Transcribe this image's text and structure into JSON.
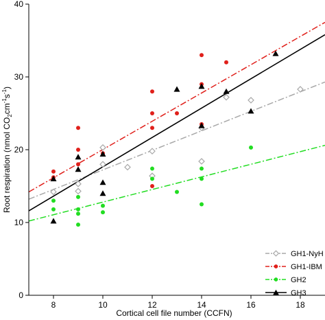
{
  "chart_data": {
    "type": "scatter",
    "title": "",
    "xlabel": "Cortical cell file number (CCFN)",
    "ylabel": {
      "pre": "Root respiration (nmol CO",
      "sub": "2",
      "mid": "cm",
      "sup1": "-1",
      "mid2": "s",
      "sup2": "-1",
      "post": ")"
    },
    "xlim": [
      7,
      19
    ],
    "ylim": [
      0,
      40
    ],
    "xticks": [
      8,
      10,
      12,
      14,
      16,
      18
    ],
    "yticks": [
      0,
      10,
      20,
      30,
      40
    ],
    "legend_position": "bottom-right",
    "grid": false,
    "series": [
      {
        "name": "GH1-NyH",
        "marker": "diamond-open",
        "color": "#a8a8a8",
        "line_style": "dash-dot",
        "points": [
          [
            8,
            14.2
          ],
          [
            9,
            14.3
          ],
          [
            9,
            15.3
          ],
          [
            10,
            20.3
          ],
          [
            10,
            18.0
          ],
          [
            11,
            17.6
          ],
          [
            12,
            16.4
          ],
          [
            12,
            19.8
          ],
          [
            14,
            18.4
          ],
          [
            14,
            23.0
          ],
          [
            15,
            27.2
          ],
          [
            16,
            26.8
          ],
          [
            18,
            28.3
          ]
        ],
        "fit": [
          [
            7,
            13.2
          ],
          [
            19,
            29.3
          ]
        ]
      },
      {
        "name": "GH1-IBM",
        "marker": "circle",
        "color": "#e0201b",
        "line_style": "dash-dot",
        "points": [
          [
            8,
            17.0
          ],
          [
            8,
            16.2
          ],
          [
            9,
            23.0
          ],
          [
            9,
            20.0
          ],
          [
            9,
            18.0
          ],
          [
            10,
            19.5
          ],
          [
            12,
            28.0
          ],
          [
            12,
            25.0
          ],
          [
            12,
            23.0
          ],
          [
            12,
            15.0
          ],
          [
            13,
            25.0
          ],
          [
            14,
            33.0
          ],
          [
            14,
            29.0
          ],
          [
            14,
            23.5
          ],
          [
            15,
            32.0
          ]
        ],
        "fit": [
          [
            7,
            14.2
          ],
          [
            19,
            37.5
          ]
        ]
      },
      {
        "name": "GH2",
        "marker": "circle",
        "color": "#22dd22",
        "line_style": "dash-dot",
        "points": [
          [
            8,
            13.0
          ],
          [
            8,
            11.8
          ],
          [
            9,
            13.5
          ],
          [
            9,
            11.8
          ],
          [
            9,
            11.2
          ],
          [
            9,
            9.7
          ],
          [
            10,
            12.3
          ],
          [
            10,
            11.4
          ],
          [
            12,
            17.4
          ],
          [
            12,
            16.0
          ],
          [
            13,
            14.2
          ],
          [
            14,
            17.4
          ],
          [
            14,
            16.0
          ],
          [
            14,
            12.5
          ],
          [
            16,
            20.3
          ]
        ],
        "fit": [
          [
            7,
            10.2
          ],
          [
            19,
            20.6
          ]
        ]
      },
      {
        "name": "GH3",
        "marker": "triangle",
        "color": "#000000",
        "line_style": "solid",
        "points": [
          [
            8,
            16.0
          ],
          [
            8,
            10.2
          ],
          [
            9,
            19.0
          ],
          [
            9,
            17.3
          ],
          [
            10,
            19.4
          ],
          [
            10,
            15.5
          ],
          [
            10,
            14.0
          ],
          [
            13,
            28.3
          ],
          [
            14,
            28.7
          ],
          [
            14,
            23.3
          ],
          [
            15,
            28.0
          ],
          [
            16,
            25.3
          ],
          [
            17,
            33.2
          ]
        ],
        "fit": [
          [
            7,
            11.6
          ],
          [
            19,
            35.8
          ]
        ]
      }
    ]
  }
}
